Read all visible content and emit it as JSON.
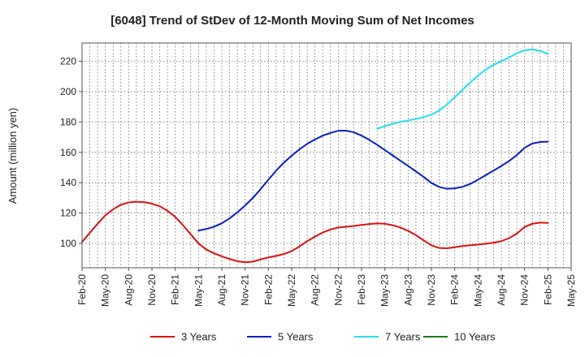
{
  "chart_data": {
    "type": "line",
    "title": "[6048]  Trend of StDev of 12-Month Moving Sum of Net Incomes",
    "ylabel": "Amount (million yen)",
    "xlabel": "",
    "ylim": [
      84,
      232
    ],
    "yticks": [
      100,
      120,
      140,
      160,
      180,
      200,
      220
    ],
    "xlim": [
      "2020-02",
      "2025-05"
    ],
    "xticks": [
      "Feb-20",
      "May-20",
      "Aug-20",
      "Nov-20",
      "Feb-21",
      "May-21",
      "Aug-21",
      "Nov-21",
      "Feb-22",
      "May-22",
      "Aug-22",
      "Nov-22",
      "Feb-23",
      "May-23",
      "Aug-23",
      "Nov-23",
      "Feb-24",
      "May-24",
      "Aug-24",
      "Nov-24",
      "Feb-25",
      "May-25"
    ],
    "grid": true,
    "legend_position": "bottom",
    "series": [
      {
        "name": "3 Years",
        "color": "#dd1111",
        "points": [
          [
            "2020-02",
            101
          ],
          [
            "2020-03",
            107
          ],
          [
            "2020-04",
            113
          ],
          [
            "2020-05",
            118.5
          ],
          [
            "2020-06",
            122.5
          ],
          [
            "2020-07",
            125.5
          ],
          [
            "2020-08",
            127
          ],
          [
            "2020-09",
            127.5
          ],
          [
            "2020-10",
            127.2
          ],
          [
            "2020-11",
            126.2
          ],
          [
            "2020-12",
            124.5
          ],
          [
            "2021-01",
            121.5
          ],
          [
            "2021-02",
            117.5
          ],
          [
            "2021-03",
            112
          ],
          [
            "2021-04",
            106
          ],
          [
            "2021-05",
            100
          ],
          [
            "2021-06",
            96
          ],
          [
            "2021-07",
            93.5
          ],
          [
            "2021-08",
            91.5
          ],
          [
            "2021-09",
            89.8
          ],
          [
            "2021-10",
            88.3
          ],
          [
            "2021-11",
            87.6
          ],
          [
            "2021-12",
            88
          ],
          [
            "2022-01",
            89.5
          ],
          [
            "2022-02",
            90.8
          ],
          [
            "2022-03",
            91.8
          ],
          [
            "2022-04",
            93
          ],
          [
            "2022-05",
            95
          ],
          [
            "2022-06",
            98
          ],
          [
            "2022-07",
            101.5
          ],
          [
            "2022-08",
            104.5
          ],
          [
            "2022-09",
            107.2
          ],
          [
            "2022-10",
            109.2
          ],
          [
            "2022-11",
            110.5
          ],
          [
            "2022-12",
            111
          ],
          [
            "2023-01",
            111.5
          ],
          [
            "2023-02",
            112.2
          ],
          [
            "2023-03",
            112.8
          ],
          [
            "2023-04",
            113.2
          ],
          [
            "2023-05",
            113
          ],
          [
            "2023-06",
            112
          ],
          [
            "2023-07",
            110.5
          ],
          [
            "2023-08",
            108.3
          ],
          [
            "2023-09",
            105.5
          ],
          [
            "2023-10",
            102
          ],
          [
            "2023-11",
            98.8
          ],
          [
            "2023-12",
            97
          ],
          [
            "2024-01",
            96.8
          ],
          [
            "2024-02",
            97.5
          ],
          [
            "2024-03",
            98.3
          ],
          [
            "2024-04",
            98.8
          ],
          [
            "2024-05",
            99.2
          ],
          [
            "2024-06",
            99.8
          ],
          [
            "2024-07",
            100.5
          ],
          [
            "2024-08",
            101.5
          ],
          [
            "2024-09",
            103.5
          ],
          [
            "2024-10",
            106.5
          ],
          [
            "2024-11",
            110.8
          ],
          [
            "2024-12",
            113
          ],
          [
            "2025-01",
            113.7
          ],
          [
            "2025-02",
            113.5
          ]
        ]
      },
      {
        "name": "5 Years",
        "color": "#0a1fbf",
        "points": [
          [
            "2021-05",
            108.5
          ],
          [
            "2021-06",
            109.5
          ],
          [
            "2021-07",
            111
          ],
          [
            "2021-08",
            113.3
          ],
          [
            "2021-09",
            116.5
          ],
          [
            "2021-10",
            120.5
          ],
          [
            "2021-11",
            125
          ],
          [
            "2021-12",
            130
          ],
          [
            "2022-01",
            135.8
          ],
          [
            "2022-02",
            142
          ],
          [
            "2022-03",
            148
          ],
          [
            "2022-04",
            153.2
          ],
          [
            "2022-05",
            157.8
          ],
          [
            "2022-06",
            162
          ],
          [
            "2022-07",
            165.6
          ],
          [
            "2022-08",
            168.5
          ],
          [
            "2022-09",
            171
          ],
          [
            "2022-10",
            172.8
          ],
          [
            "2022-11",
            174.2
          ],
          [
            "2022-12",
            174.3
          ],
          [
            "2023-01",
            173.2
          ],
          [
            "2023-02",
            171
          ],
          [
            "2023-03",
            168.2
          ],
          [
            "2023-04",
            165
          ],
          [
            "2023-05",
            161.5
          ],
          [
            "2023-06",
            158
          ],
          [
            "2023-07",
            154.5
          ],
          [
            "2023-08",
            151
          ],
          [
            "2023-09",
            147.5
          ],
          [
            "2023-10",
            143.8
          ],
          [
            "2023-11",
            139.8
          ],
          [
            "2023-12",
            137.2
          ],
          [
            "2024-01",
            136
          ],
          [
            "2024-02",
            136.3
          ],
          [
            "2024-03",
            137.3
          ],
          [
            "2024-04",
            139.2
          ],
          [
            "2024-05",
            142
          ],
          [
            "2024-06",
            145
          ],
          [
            "2024-07",
            148
          ],
          [
            "2024-08",
            151
          ],
          [
            "2024-09",
            154.3
          ],
          [
            "2024-10",
            158.2
          ],
          [
            "2024-11",
            163
          ],
          [
            "2024-12",
            165.8
          ],
          [
            "2025-01",
            166.8
          ],
          [
            "2025-02",
            167
          ]
        ]
      },
      {
        "name": "7 Years",
        "color": "#22e0ee",
        "points": [
          [
            "2023-04",
            175.5
          ],
          [
            "2023-05",
            177.2
          ],
          [
            "2023-06",
            178.8
          ],
          [
            "2023-07",
            180
          ],
          [
            "2023-08",
            181
          ],
          [
            "2023-09",
            182
          ],
          [
            "2023-10",
            183.2
          ],
          [
            "2023-11",
            184.8
          ],
          [
            "2023-12",
            187.5
          ],
          [
            "2024-01",
            191.5
          ],
          [
            "2024-02",
            196.2
          ],
          [
            "2024-03",
            201.2
          ],
          [
            "2024-04",
            206
          ],
          [
            "2024-05",
            210.5
          ],
          [
            "2024-06",
            214.5
          ],
          [
            "2024-07",
            217.5
          ],
          [
            "2024-08",
            220
          ],
          [
            "2024-09",
            222.5
          ],
          [
            "2024-10",
            225.2
          ],
          [
            "2024-11",
            227.2
          ],
          [
            "2024-12",
            227.8
          ],
          [
            "2025-01",
            226.8
          ],
          [
            "2025-02",
            224.8
          ]
        ]
      },
      {
        "name": "10 Years",
        "color": "#1a7f1a",
        "points": []
      }
    ]
  }
}
